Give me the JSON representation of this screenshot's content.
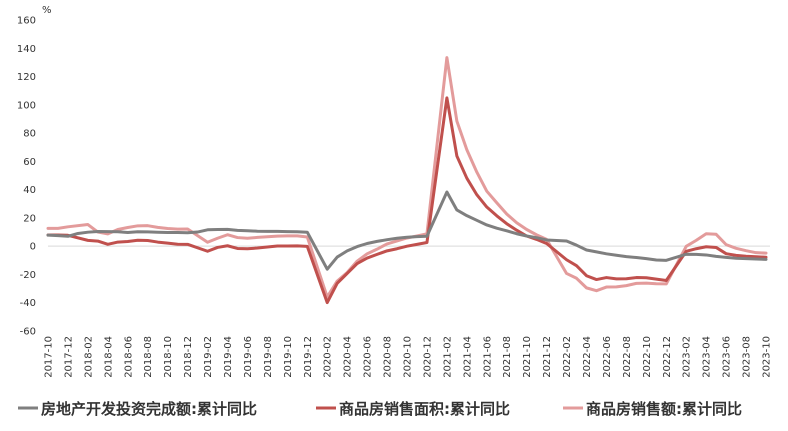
{
  "chart_data": {
    "type": "line",
    "unit_label": "%",
    "ylim": [
      -60,
      160
    ],
    "yticks": [
      -60,
      -40,
      -20,
      0,
      20,
      40,
      60,
      80,
      100,
      120,
      140,
      160
    ],
    "categories": [
      "2017-10",
      "2017-11",
      "2017-12",
      "2018-01",
      "2018-02",
      "2018-03",
      "2018-04",
      "2018-05",
      "2018-06",
      "2018-07",
      "2018-08",
      "2018-09",
      "2018-10",
      "2018-11",
      "2018-12",
      "2019-01",
      "2019-02",
      "2019-03",
      "2019-04",
      "2019-05",
      "2019-06",
      "2019-07",
      "2019-08",
      "2019-09",
      "2019-10",
      "2019-11",
      "2019-12",
      "2020-01",
      "2020-02",
      "2020-03",
      "2020-04",
      "2020-05",
      "2020-06",
      "2020-07",
      "2020-08",
      "2020-09",
      "2020-10",
      "2020-11",
      "2020-12",
      "2021-01",
      "2021-02",
      "2021-03",
      "2021-04",
      "2021-05",
      "2021-06",
      "2021-07",
      "2021-08",
      "2021-09",
      "2021-10",
      "2021-11",
      "2021-12",
      "2022-01",
      "2022-02",
      "2022-03",
      "2022-04",
      "2022-05",
      "2022-06",
      "2022-07",
      "2022-08",
      "2022-09",
      "2022-10",
      "2022-11",
      "2022-12",
      "2023-01",
      "2023-02",
      "2023-03",
      "2023-04",
      "2023-05",
      "2023-06",
      "2023-07",
      "2023-08",
      "2023-09",
      "2023-10"
    ],
    "xtick_labels": [
      "2017-10",
      "2017-12",
      "2018-02",
      "2018-04",
      "2018-06",
      "2018-08",
      "2018-10",
      "2018-12",
      "2019-02",
      "2019-04",
      "2019-06",
      "2019-08",
      "2019-10",
      "2019-12",
      "2020-02",
      "2020-04",
      "2020-06",
      "2020-08",
      "2020-10",
      "2020-12",
      "2021-02",
      "2021-04",
      "2021-06",
      "2021-08",
      "2021-10",
      "2021-12",
      "2022-02",
      "2022-04",
      "2022-06",
      "2022-08",
      "2022-10",
      "2022-12",
      "2023-02",
      "2023-04",
      "2023-06",
      "2023-08",
      "2023-10"
    ],
    "series": [
      {
        "name": "房地产开发投资完成额:累计同比",
        "color": "#7f7f7f",
        "values": [
          7.8,
          7.5,
          7.0,
          9.0,
          9.9,
          10.4,
          10.3,
          10.2,
          9.7,
          10.2,
          10.1,
          9.9,
          9.7,
          9.7,
          9.5,
          10.0,
          11.6,
          11.8,
          11.9,
          11.2,
          10.9,
          10.6,
          10.5,
          10.5,
          10.3,
          10.2,
          9.9,
          null,
          -16.3,
          -7.7,
          -3.3,
          -0.3,
          1.9,
          3.4,
          4.6,
          5.6,
          6.3,
          6.8,
          7.0,
          null,
          38.3,
          25.6,
          21.6,
          18.3,
          15.0,
          12.7,
          10.9,
          8.8,
          7.2,
          6.0,
          4.4,
          null,
          3.7,
          0.7,
          -2.7,
          -4.0,
          -5.4,
          -6.4,
          -7.4,
          -8.0,
          -8.8,
          -9.8,
          -10.0,
          null,
          -5.7,
          -5.8,
          -6.2,
          -7.2,
          -7.9,
          -8.5,
          -8.8,
          -9.1,
          -9.3
        ]
      },
      {
        "name": "商品房销售面积:累计同比",
        "color": "#c0504d",
        "values": [
          7.9,
          7.9,
          7.7,
          null,
          4.1,
          3.6,
          1.3,
          2.9,
          3.3,
          4.2,
          4.0,
          2.9,
          2.2,
          1.4,
          1.3,
          null,
          -3.6,
          -0.9,
          0.3,
          -1.6,
          -1.8,
          -1.3,
          -0.6,
          0.1,
          0.1,
          0.2,
          -0.1,
          null,
          -39.9,
          -26.3,
          -19.3,
          -12.3,
          -8.4,
          -5.8,
          -3.3,
          -1.8,
          0.0,
          1.3,
          2.6,
          null,
          104.9,
          63.8,
          48.1,
          36.4,
          27.7,
          21.5,
          15.9,
          11.3,
          7.2,
          4.8,
          1.9,
          null,
          -9.6,
          -13.8,
          -20.9,
          -23.6,
          -22.2,
          -23.1,
          -23.0,
          -22.2,
          -22.3,
          -23.3,
          -24.3,
          null,
          -3.6,
          -1.8,
          -0.4,
          -0.9,
          -5.3,
          -6.5,
          -7.1,
          -7.5,
          -7.8
        ]
      },
      {
        "name": "商品房销售额:累计同比",
        "color": "#e39b9b",
        "values": [
          12.6,
          12.6,
          13.7,
          null,
          15.3,
          10.0,
          8.7,
          11.8,
          13.2,
          14.4,
          14.5,
          13.3,
          12.5,
          12.1,
          12.2,
          null,
          2.8,
          5.6,
          8.1,
          6.1,
          5.6,
          6.2,
          6.7,
          7.1,
          7.3,
          7.3,
          6.5,
          null,
          -35.9,
          -24.7,
          -18.6,
          -10.6,
          -5.4,
          -2.1,
          1.6,
          3.7,
          5.8,
          7.2,
          8.7,
          null,
          133.4,
          88.5,
          68.2,
          52.4,
          38.9,
          30.7,
          22.8,
          16.6,
          11.8,
          8.0,
          4.8,
          null,
          -19.3,
          -22.7,
          -29.5,
          -31.5,
          -28.9,
          -28.8,
          -27.9,
          -26.3,
          -26.1,
          -26.6,
          -26.7,
          null,
          -0.1,
          4.1,
          8.8,
          8.4,
          1.1,
          -1.5,
          -3.2,
          -4.6,
          -4.9
        ]
      }
    ]
  }
}
